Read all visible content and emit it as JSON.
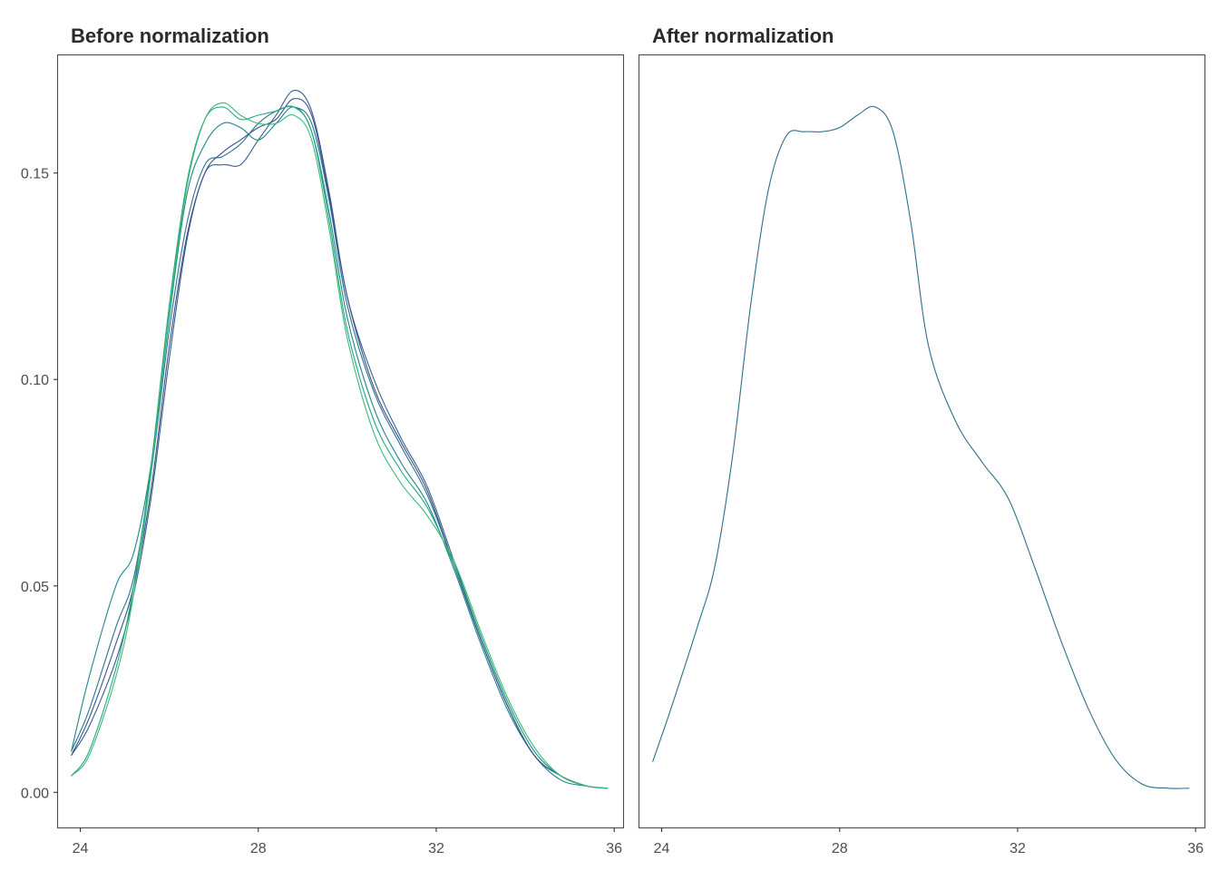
{
  "chart_data": [
    {
      "type": "line",
      "title": "Before normalization",
      "xlabel": "",
      "ylabel": "",
      "xlim": [
        23.5,
        36.2
      ],
      "ylim": [
        -0.0085,
        0.1785
      ],
      "x_ticks": [
        {
          "value": 24,
          "label": "24"
        },
        {
          "value": 28,
          "label": "28"
        },
        {
          "value": 32,
          "label": "32"
        },
        {
          "value": 36,
          "label": "36"
        }
      ],
      "y_ticks": [
        {
          "value": 0.0,
          "label": "0.00"
        },
        {
          "value": 0.05,
          "label": "0.05"
        },
        {
          "value": 0.1,
          "label": "0.10"
        },
        {
          "value": 0.15,
          "label": "0.15"
        }
      ],
      "grid": false,
      "legend": "none",
      "series": [
        {
          "color": "#35608d",
          "x": [
            23.8,
            24.2,
            24.8,
            25.2,
            25.6,
            26.0,
            26.4,
            26.8,
            27.2,
            27.6,
            28.0,
            28.4,
            28.8,
            29.2,
            29.6,
            30.0,
            30.6,
            31.2,
            31.8,
            32.4,
            33.0,
            33.6,
            34.2,
            34.8,
            35.4,
            35.85
          ],
          "y": [
            0.009,
            0.016,
            0.032,
            0.048,
            0.072,
            0.105,
            0.134,
            0.15,
            0.152,
            0.152,
            0.158,
            0.164,
            0.17,
            0.165,
            0.145,
            0.12,
            0.1,
            0.086,
            0.074,
            0.056,
            0.038,
            0.022,
            0.01,
            0.004,
            0.0015,
            0.001
          ]
        },
        {
          "color": "#2c728e",
          "x": [
            23.8,
            24.2,
            24.8,
            25.2,
            25.6,
            26.0,
            26.4,
            26.8,
            27.2,
            27.6,
            28.0,
            28.4,
            28.8,
            29.2,
            29.6,
            30.0,
            30.6,
            31.2,
            31.8,
            32.4,
            33.0,
            33.6,
            34.2,
            34.8,
            35.4,
            35.85
          ],
          "y": [
            0.01,
            0.02,
            0.04,
            0.052,
            0.078,
            0.112,
            0.138,
            0.152,
            0.154,
            0.157,
            0.162,
            0.165,
            0.166,
            0.162,
            0.143,
            0.118,
            0.097,
            0.084,
            0.072,
            0.055,
            0.037,
            0.021,
            0.009,
            0.004,
            0.0015,
            0.001
          ]
        },
        {
          "color": "#20848e",
          "x": [
            23.8,
            24.2,
            24.8,
            25.2,
            25.6,
            26.0,
            26.4,
            26.8,
            27.2,
            27.6,
            28.0,
            28.4,
            28.8,
            29.2,
            29.6,
            30.0,
            30.6,
            31.2,
            31.8,
            32.4,
            33.0,
            33.6,
            34.2,
            34.8,
            35.4,
            35.85
          ],
          "y": [
            0.01,
            0.028,
            0.05,
            0.058,
            0.08,
            0.115,
            0.145,
            0.157,
            0.162,
            0.161,
            0.158,
            0.162,
            0.166,
            0.16,
            0.14,
            0.115,
            0.093,
            0.08,
            0.07,
            0.054,
            0.036,
            0.02,
            0.009,
            0.003,
            0.0015,
            0.001
          ]
        },
        {
          "color": "#3b528b",
          "x": [
            23.8,
            24.2,
            24.8,
            25.2,
            25.6,
            26.0,
            26.4,
            26.8,
            27.2,
            27.6,
            28.0,
            28.4,
            28.8,
            29.2,
            29.6,
            30.0,
            30.6,
            31.2,
            31.8,
            32.4,
            33.0,
            33.6,
            34.2,
            34.8,
            35.4,
            35.85
          ],
          "y": [
            0.009,
            0.018,
            0.036,
            0.05,
            0.074,
            0.108,
            0.135,
            0.15,
            0.155,
            0.158,
            0.161,
            0.163,
            0.168,
            0.164,
            0.144,
            0.12,
            0.098,
            0.085,
            0.073,
            0.055,
            0.037,
            0.021,
            0.009,
            0.004,
            0.0015,
            0.001
          ]
        },
        {
          "color": "#22a884",
          "x": [
            23.8,
            24.2,
            24.8,
            25.2,
            25.6,
            26.0,
            26.4,
            26.8,
            27.2,
            27.6,
            28.0,
            28.4,
            28.8,
            29.2,
            29.6,
            30.0,
            30.6,
            31.2,
            31.8,
            32.4,
            33.0,
            33.6,
            34.2,
            34.8,
            35.4,
            35.85
          ],
          "y": [
            0.004,
            0.01,
            0.03,
            0.05,
            0.08,
            0.118,
            0.148,
            0.163,
            0.166,
            0.163,
            0.164,
            0.165,
            0.166,
            0.16,
            0.138,
            0.112,
            0.09,
            0.078,
            0.069,
            0.055,
            0.038,
            0.022,
            0.01,
            0.004,
            0.0015,
            0.001
          ]
        },
        {
          "color": "#3bbb75",
          "x": [
            23.8,
            24.2,
            24.8,
            25.2,
            25.6,
            26.0,
            26.4,
            26.8,
            27.2,
            27.6,
            28.0,
            28.4,
            28.8,
            29.2,
            29.6,
            30.0,
            30.6,
            31.2,
            31.8,
            32.4,
            33.0,
            33.6,
            34.2,
            34.8,
            35.4,
            35.85
          ],
          "y": [
            0.004,
            0.009,
            0.028,
            0.048,
            0.078,
            0.116,
            0.147,
            0.163,
            0.167,
            0.164,
            0.162,
            0.162,
            0.164,
            0.158,
            0.136,
            0.11,
            0.087,
            0.075,
            0.067,
            0.056,
            0.039,
            0.023,
            0.011,
            0.004,
            0.0015,
            0.001
          ]
        }
      ]
    },
    {
      "type": "line",
      "title": "After normalization",
      "xlabel": "",
      "ylabel": "",
      "xlim": [
        23.5,
        36.2
      ],
      "ylim": [
        -0.0085,
        0.1785
      ],
      "x_ticks": [
        {
          "value": 24,
          "label": "24"
        },
        {
          "value": 28,
          "label": "28"
        },
        {
          "value": 32,
          "label": "32"
        },
        {
          "value": 36,
          "label": "36"
        }
      ],
      "y_ticks": [],
      "grid": false,
      "legend": "none",
      "series": [
        {
          "color": "#2c6e8a",
          "x": [
            23.8,
            24.2,
            24.8,
            25.2,
            25.6,
            26.0,
            26.4,
            26.8,
            27.2,
            27.6,
            28.0,
            28.4,
            28.8,
            29.2,
            29.6,
            30.0,
            30.6,
            31.2,
            31.8,
            32.4,
            33.0,
            33.6,
            34.2,
            34.8,
            35.4,
            35.85
          ],
          "y": [
            0.0075,
            0.02,
            0.04,
            0.055,
            0.082,
            0.118,
            0.146,
            0.159,
            0.16,
            0.16,
            0.161,
            0.164,
            0.166,
            0.16,
            0.138,
            0.108,
            0.09,
            0.08,
            0.071,
            0.054,
            0.036,
            0.02,
            0.008,
            0.002,
            0.001,
            0.001
          ]
        }
      ]
    }
  ]
}
